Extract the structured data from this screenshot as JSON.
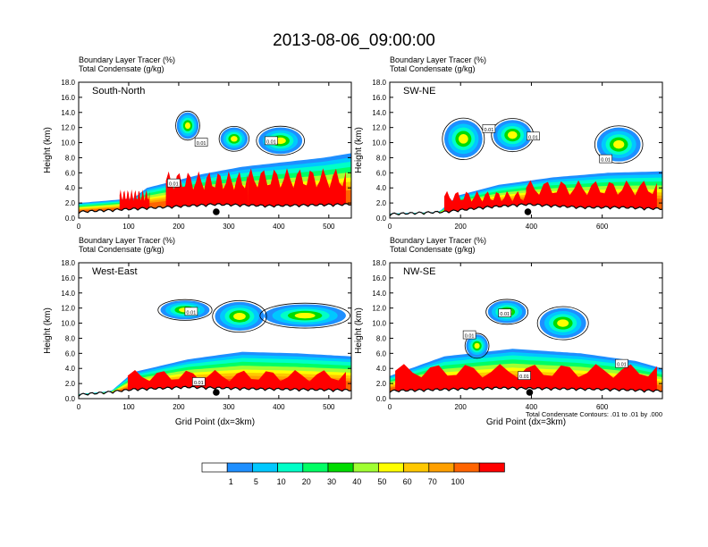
{
  "title": "2013-08-06_09:00:00",
  "chart_data": [
    {
      "type": "heatmap",
      "panel_label": "South-North",
      "left_string_1": "Boundary Layer Tracer",
      "left_unit_1": "(%)",
      "left_string_2": "Total Condensate",
      "left_unit_2": "(g/kg)",
      "ylabel": "Height (km)",
      "xlabel": "",
      "xlim": [
        0,
        545
      ],
      "ylim": [
        0,
        18
      ],
      "x_ticks": [
        "0",
        "100",
        "200",
        "300",
        "400",
        "500"
      ],
      "y_ticks": [
        "0.0",
        "2.0",
        "4.0",
        "6.0",
        "8.0",
        "10.0",
        "12.0",
        "14.0",
        "16.0",
        "18.0"
      ],
      "marker_x": 275,
      "contour_labels": [
        {
          "text": "0.01",
          "x": 190,
          "y": 4.6
        },
        {
          "text": "0.01",
          "x": 245,
          "y": 10.0
        },
        {
          "text": "0.01",
          "x": 385,
          "y": 10.2
        }
      ]
    },
    {
      "type": "heatmap",
      "panel_label": "SW-NE",
      "left_string_1": "Boundary Layer Tracer",
      "left_unit_1": "(%)",
      "left_string_2": "Total Condensate",
      "left_unit_2": "(g/kg)",
      "ylabel": "Height (km)",
      "xlabel": "",
      "xlim": [
        0,
        770
      ],
      "ylim": [
        0,
        18
      ],
      "x_ticks": [
        "0",
        "200",
        "400",
        "600"
      ],
      "y_ticks": [
        "0.0",
        "2.0",
        "4.0",
        "6.0",
        "8.0",
        "10.0",
        "12.0",
        "14.0",
        "16.0",
        "18.0"
      ],
      "marker_x": 390,
      "contour_labels": [
        {
          "text": "0.01",
          "x": 280,
          "y": 11.8
        },
        {
          "text": "0.01",
          "x": 405,
          "y": 10.8
        },
        {
          "text": "0.01",
          "x": 610,
          "y": 7.8
        }
      ]
    },
    {
      "type": "heatmap",
      "panel_label": "West-East",
      "left_string_1": "Boundary Layer Tracer",
      "left_unit_1": "(%)",
      "left_string_2": "Total Condensate",
      "left_unit_2": "(g/kg)",
      "ylabel": "Height (km)",
      "xlabel": "Grid Point (dx=3km)",
      "xlim": [
        0,
        545
      ],
      "ylim": [
        0,
        18
      ],
      "x_ticks": [
        "0",
        "100",
        "200",
        "300",
        "400",
        "500"
      ],
      "y_ticks": [
        "0.0",
        "2.0",
        "4.0",
        "6.0",
        "8.0",
        "10.0",
        "12.0",
        "14.0",
        "16.0",
        "18.0"
      ],
      "marker_x": 275,
      "contour_labels": [
        {
          "text": "0.01",
          "x": 225,
          "y": 11.5
        },
        {
          "text": "0.01",
          "x": 240,
          "y": 2.2
        }
      ]
    },
    {
      "type": "heatmap",
      "panel_label": "NW-SE",
      "left_string_1": "Boundary Layer Tracer",
      "left_unit_1": "(%)",
      "left_string_2": "Total Condensate",
      "left_unit_2": "(g/kg)",
      "ylabel": "Height (km)",
      "xlabel": "Grid Point (dx=3km)",
      "xlim": [
        0,
        770
      ],
      "ylim": [
        0,
        18
      ],
      "x_ticks": [
        "0",
        "200",
        "400",
        "600"
      ],
      "y_ticks": [
        "0.0",
        "2.0",
        "4.0",
        "6.0",
        "8.0",
        "10.0",
        "12.0",
        "14.0",
        "16.0",
        "18.0"
      ],
      "marker_x": 395,
      "contour_info": "Total Condensate Contours: .01 to .01 by .000",
      "contour_labels": [
        {
          "text": "0.01",
          "x": 325,
          "y": 11.3
        },
        {
          "text": "0.01",
          "x": 225,
          "y": 8.4
        },
        {
          "text": "0.01",
          "x": 380,
          "y": 3.0
        },
        {
          "text": "0.01",
          "x": 655,
          "y": 4.6
        }
      ]
    }
  ],
  "colorbar": {
    "colors": [
      "#ffffff",
      "#1e8fff",
      "#00c8ff",
      "#00ffc8",
      "#00ff64",
      "#00dc00",
      "#a0ff32",
      "#ffff00",
      "#ffc800",
      "#ffa000",
      "#ff6400",
      "#ff0000"
    ],
    "labels": [
      "1",
      "5",
      "10",
      "20",
      "30",
      "40",
      "50",
      "60",
      "70",
      "100"
    ]
  }
}
